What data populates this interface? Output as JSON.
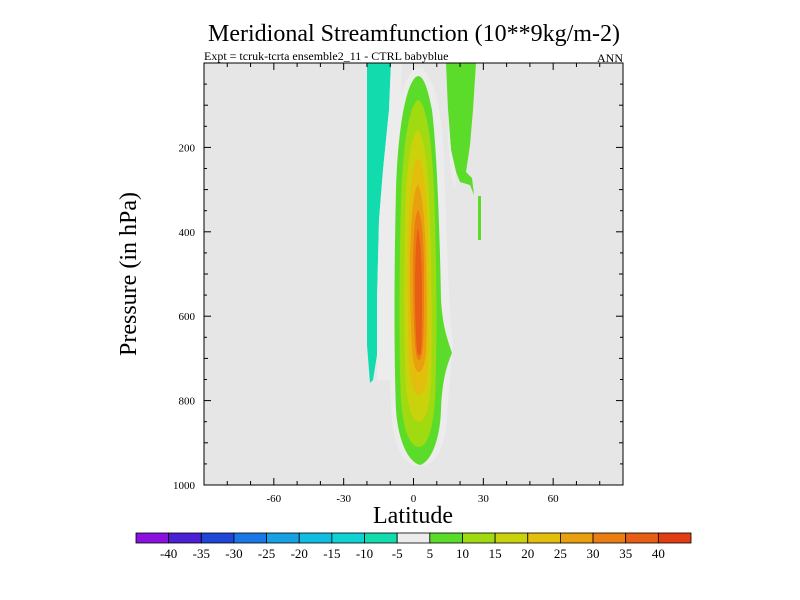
{
  "chart_data": {
    "type": "contour",
    "title": "Meridional Streamfunction (10**9kg/m-2)",
    "subtitle_left": "Expt = tcruk-tcrta  ensemble2_11 - CTRL babyblue",
    "subtitle_right": "ANN",
    "xlabel": "Latitude",
    "ylabel": "Pressure (in hPa)",
    "xlim": [
      -90,
      90
    ],
    "ylim": [
      1000,
      0
    ],
    "x_ticks": [
      "-60",
      "-30",
      "0",
      "30",
      "60"
    ],
    "y_ticks": [
      "200",
      "400",
      "600",
      "800",
      "1000"
    ],
    "background_color": "#e6e6e6",
    "colorbar": {
      "colors": [
        "#8a11e0",
        "#4b1fd6",
        "#1e46d8",
        "#1a78e6",
        "#18a0e4",
        "#10bce0",
        "#10d2d2",
        "#12dcae",
        "#ececec",
        "#5cdc2a",
        "#a0da10",
        "#cad20c",
        "#e4be0c",
        "#e8a00e",
        "#ea7e12",
        "#e85e14",
        "#e23c12"
      ],
      "labels": [
        "-40",
        "-35",
        "-30",
        "-25",
        "-20",
        "-15",
        "-10",
        "-5",
        "5",
        "10",
        "15",
        "20",
        "25",
        "30",
        "35",
        "40"
      ]
    },
    "contour_fill_levels": [
      {
        "range": "-10 to -5",
        "color": "#12dcae",
        "region": "narrow band near 18S, 0-760 hPa"
      },
      {
        "range": "5 to 10",
        "color": "#5cdc2a",
        "region": "core around 0 latitude, 0-950 hPa; upper branch near 15N"
      },
      {
        "range": "10 to 15",
        "color": "#a0da10",
        "region": "inner core, 100-900 hPa"
      },
      {
        "range": "15 to 20",
        "color": "#cad20c",
        "region": "inner core, 180-850 hPa"
      },
      {
        "range": "20 to 25",
        "color": "#e4be0c",
        "region": "inner core, 250-800 hPa"
      },
      {
        "range": "25 to 30",
        "color": "#e8a00e",
        "region": "inner core, 300-770 hPa"
      },
      {
        "range": "30 to 35",
        "color": "#ea7e12",
        "region": "inner core, 350-720 hPa"
      },
      {
        "range": "35 to 40",
        "color": "#e85e14",
        "region": "center near 2N, 400-690 hPa"
      }
    ]
  }
}
